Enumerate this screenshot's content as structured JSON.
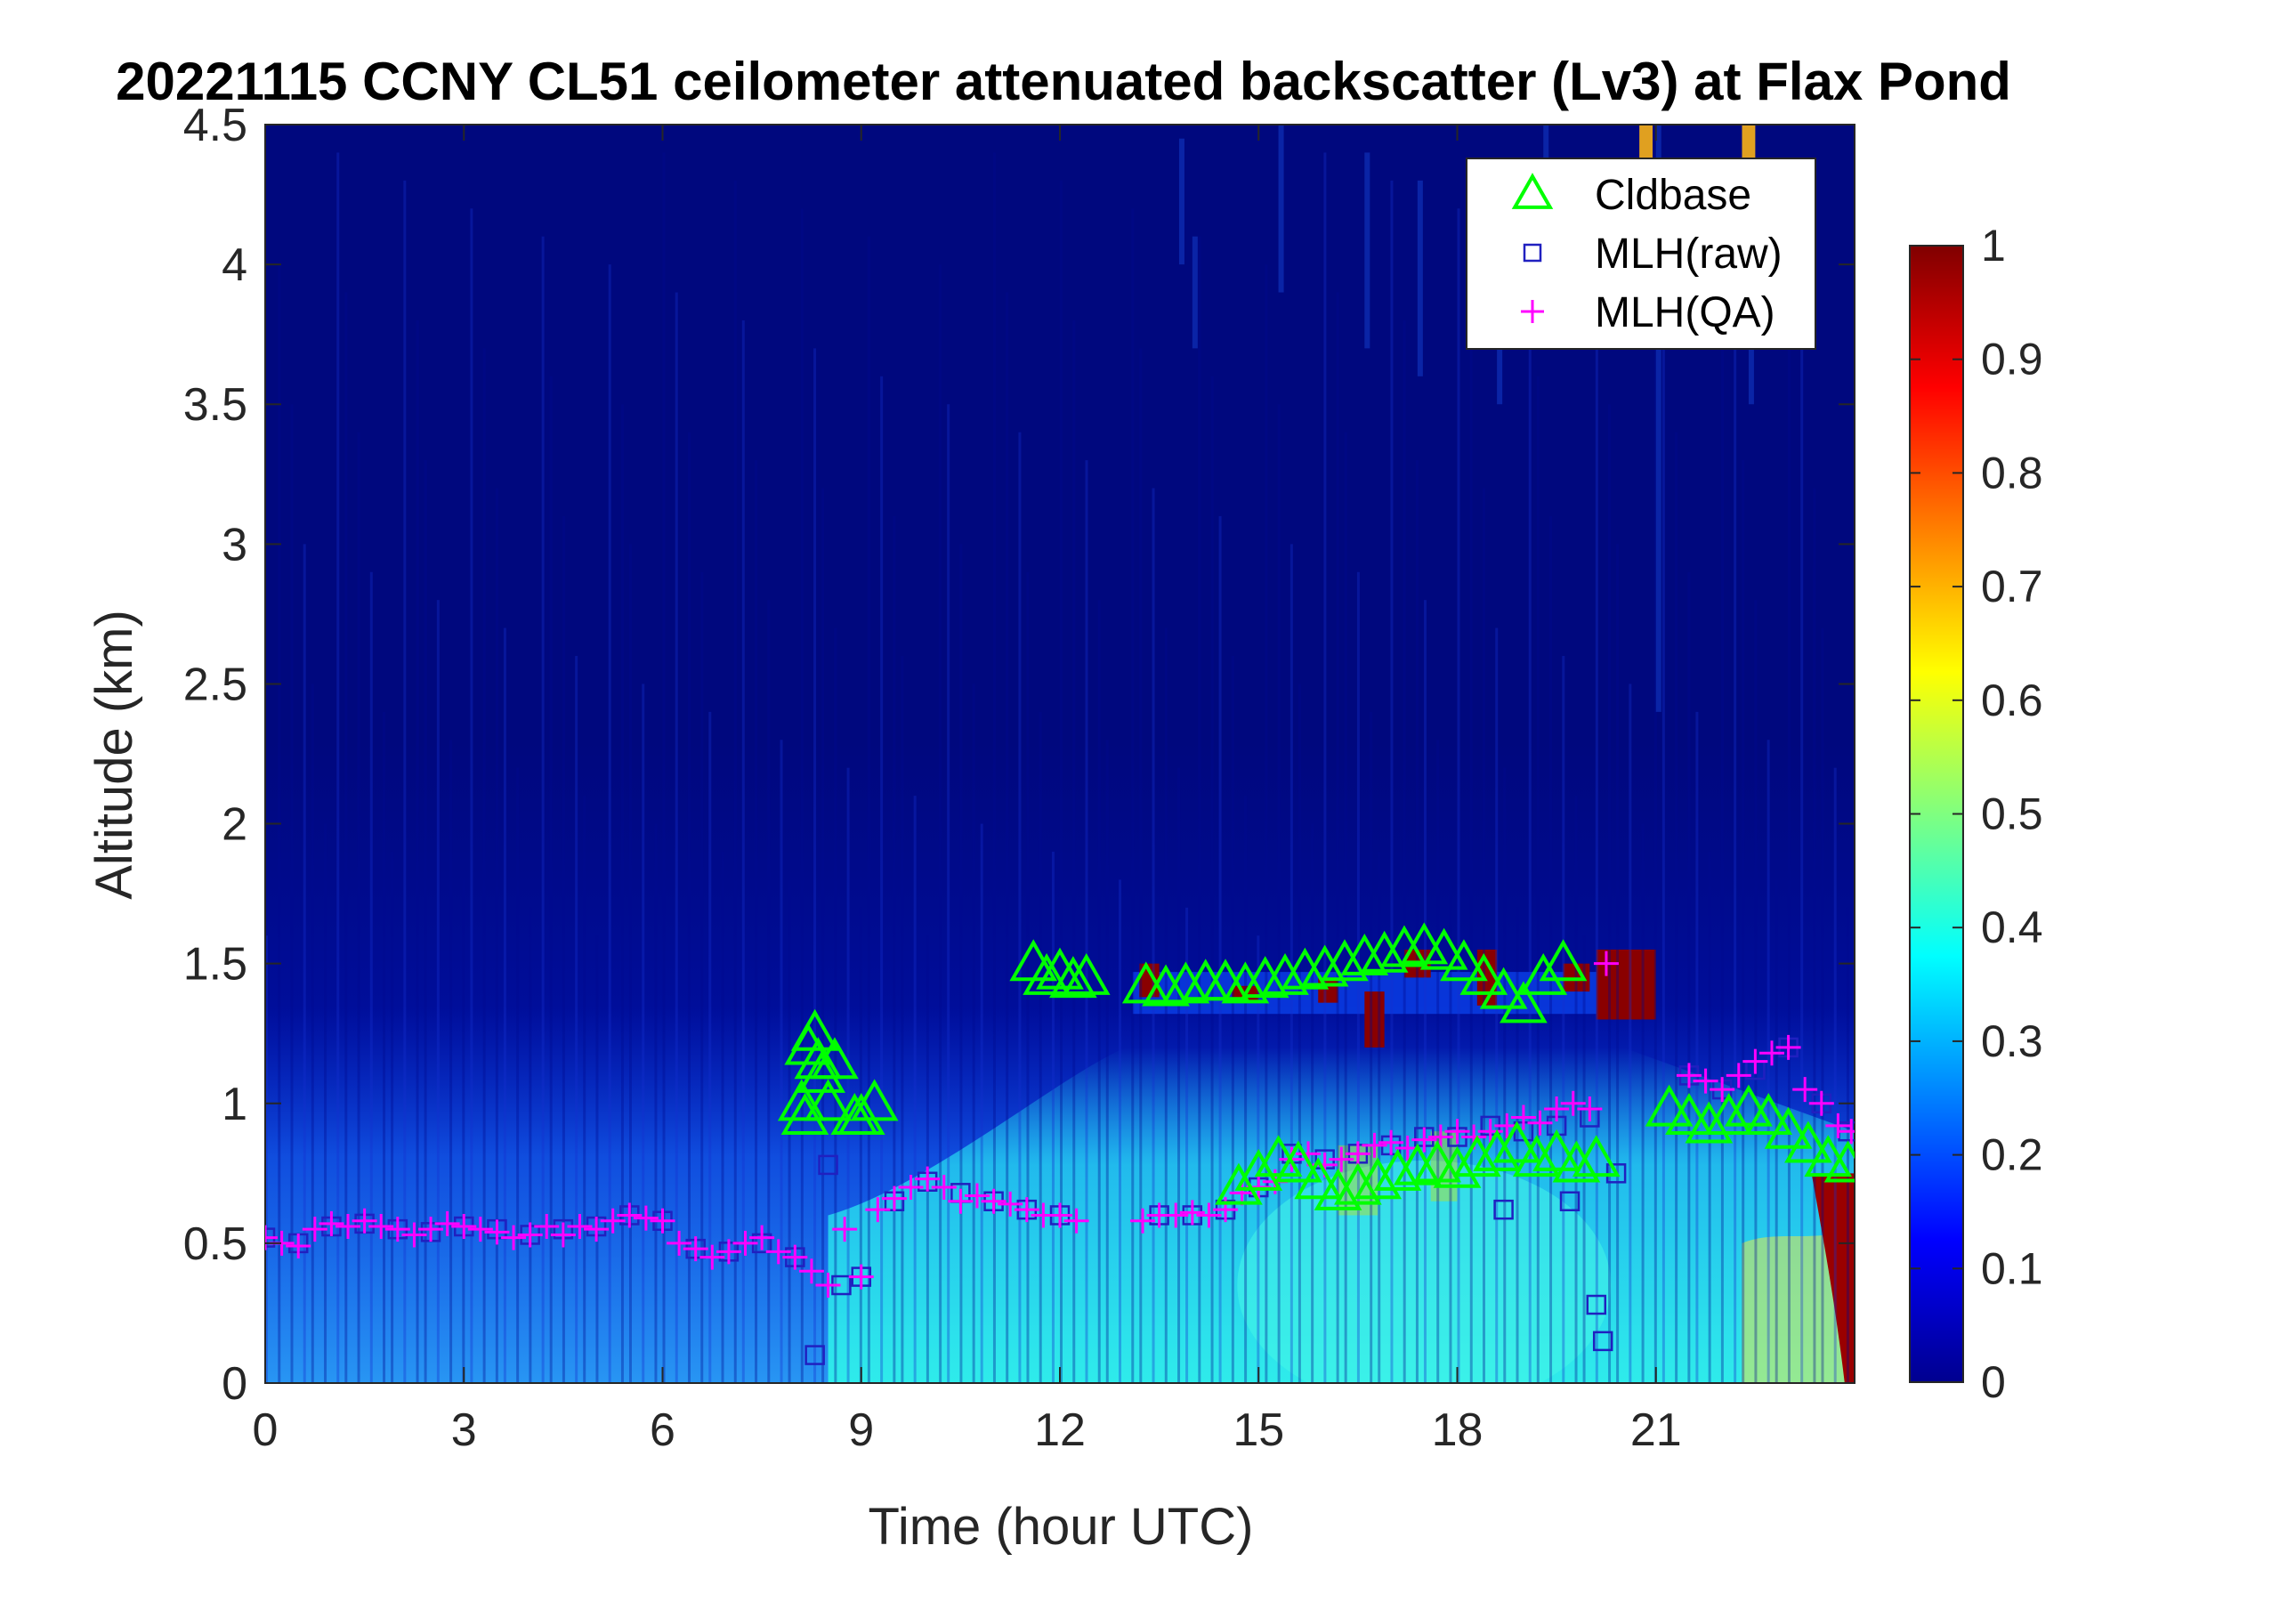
{
  "chart_data": {
    "type": "heatmap",
    "title": "20221115 CCNY CL51 ceilometer attenuated backscatter (Lv3) at Flax Pond",
    "xlabel": "Time (hour UTC)",
    "ylabel": "Altitude (km)",
    "xlim": [
      0,
      24
    ],
    "ylim": [
      0,
      4.5
    ],
    "xticks": [
      0,
      3,
      6,
      9,
      12,
      15,
      18,
      21
    ],
    "yticks": [
      0,
      0.5,
      1,
      1.5,
      2,
      2.5,
      3,
      3.5,
      4,
      4.5
    ],
    "xtick_labels": [
      "0",
      "3",
      "6",
      "9",
      "12",
      "15",
      "18",
      "21"
    ],
    "ytick_labels": [
      "0",
      "0.5",
      "1",
      "1.5",
      "2",
      "2.5",
      "3",
      "3.5",
      "4",
      "4.5"
    ],
    "colormap": "jet",
    "clim": [
      0,
      1
    ],
    "colorbar_ticks": [
      0,
      0.1,
      0.2,
      0.3,
      0.4,
      0.5,
      0.6,
      0.7,
      0.8,
      0.9,
      1
    ],
    "colorbar_tick_labels": [
      "0",
      "0.1",
      "0.2",
      "0.3",
      "0.4",
      "0.5",
      "0.6",
      "0.7",
      "0.8",
      "0.9",
      "1"
    ],
    "legend_position": "top-right",
    "series": [
      {
        "name": "Cldbase",
        "marker": "triangle",
        "color": "#00ff00",
        "x": [
          8.1,
          8.15,
          8.2,
          8.3,
          8.35,
          8.4,
          8.5,
          8.6,
          8.9,
          9.0,
          9.2,
          11.6,
          11.8,
          12.0,
          12.2,
          12.4,
          13.3,
          13.6,
          13.9,
          14.2,
          14.5,
          14.8,
          15.1,
          15.4,
          15.7,
          16.0,
          16.3,
          16.6,
          16.9,
          17.2,
          17.5,
          17.8,
          18.1,
          18.4,
          18.7,
          19.0,
          19.3,
          19.6,
          14.7,
          15.0,
          15.3,
          15.6,
          15.9,
          16.2,
          16.5,
          16.8,
          17.1,
          17.4,
          17.7,
          18.0,
          18.3,
          18.6,
          18.9,
          19.2,
          19.5,
          19.8,
          20.1,
          21.2,
          21.5,
          21.8,
          22.1,
          22.4,
          22.7,
          23.0,
          23.3,
          23.6,
          23.9
        ],
        "y": [
          1.0,
          0.95,
          1.2,
          1.25,
          1.15,
          1.1,
          1.0,
          1.15,
          0.95,
          0.95,
          1.0,
          1.5,
          1.45,
          1.47,
          1.44,
          1.45,
          1.42,
          1.41,
          1.42,
          1.43,
          1.43,
          1.42,
          1.44,
          1.45,
          1.47,
          1.48,
          1.5,
          1.52,
          1.53,
          1.55,
          1.56,
          1.54,
          1.5,
          1.45,
          1.4,
          1.35,
          1.45,
          1.5,
          0.7,
          0.75,
          0.8,
          0.78,
          0.72,
          0.68,
          0.7,
          0.72,
          0.75,
          0.77,
          0.78,
          0.76,
          0.8,
          0.82,
          0.85,
          0.8,
          0.82,
          0.78,
          0.8,
          0.98,
          0.95,
          0.92,
          0.95,
          0.98,
          0.95,
          0.9,
          0.85,
          0.8,
          0.78
        ]
      },
      {
        "name": "MLH(raw)",
        "marker": "square",
        "color": "#2020c0",
        "x": [
          0.0,
          0.5,
          1.0,
          1.5,
          2.0,
          2.5,
          3.0,
          3.5,
          4.0,
          4.5,
          5.0,
          5.5,
          6.0,
          6.5,
          7.0,
          7.5,
          8.0,
          8.3,
          8.5,
          8.7,
          9.0,
          9.5,
          10.0,
          10.5,
          11.0,
          11.5,
          12.0,
          13.5,
          14.0,
          14.5,
          15.0,
          15.5,
          16.0,
          16.5,
          17.0,
          17.5,
          18.0,
          18.5,
          18.7,
          19.0,
          19.5,
          19.7,
          20.0,
          20.1,
          20.2,
          20.4,
          21.5,
          22.0,
          22.5,
          23.0,
          23.5,
          23.9
        ],
        "y": [
          0.52,
          0.5,
          0.56,
          0.57,
          0.55,
          0.54,
          0.56,
          0.55,
          0.53,
          0.55,
          0.56,
          0.6,
          0.58,
          0.48,
          0.47,
          0.5,
          0.45,
          0.1,
          0.78,
          0.35,
          0.38,
          0.65,
          0.72,
          0.68,
          0.65,
          0.62,
          0.6,
          0.6,
          0.6,
          0.62,
          0.7,
          0.82,
          0.8,
          0.82,
          0.85,
          0.88,
          0.88,
          0.92,
          0.62,
          0.9,
          0.92,
          0.65,
          0.95,
          0.28,
          0.15,
          0.75,
          1.1,
          1.05,
          1.12,
          1.2,
          1.0,
          0.9
        ]
      },
      {
        "name": "MLH(QA)",
        "marker": "plus",
        "color": "#ff00ff",
        "x": [
          0.0,
          0.25,
          0.5,
          0.75,
          1.0,
          1.25,
          1.5,
          1.75,
          2.0,
          2.25,
          2.5,
          2.75,
          3.0,
          3.25,
          3.5,
          3.75,
          4.0,
          4.25,
          4.5,
          4.75,
          5.0,
          5.25,
          5.5,
          5.75,
          6.0,
          6.25,
          6.5,
          6.75,
          7.0,
          7.25,
          7.5,
          7.75,
          8.0,
          8.25,
          8.5,
          8.75,
          9.0,
          9.25,
          9.5,
          9.75,
          10.0,
          10.25,
          10.5,
          10.75,
          11.0,
          11.25,
          11.5,
          11.75,
          12.0,
          12.25,
          13.25,
          13.5,
          13.75,
          14.0,
          14.25,
          14.5,
          14.75,
          15.0,
          15.25,
          15.5,
          15.75,
          16.0,
          16.25,
          16.5,
          16.75,
          17.0,
          17.25,
          17.5,
          17.75,
          18.0,
          18.25,
          18.5,
          18.75,
          19.0,
          19.25,
          19.5,
          19.75,
          20.0,
          20.25,
          21.5,
          21.75,
          22.0,
          22.25,
          22.5,
          22.75,
          23.0,
          23.25,
          23.5,
          23.75,
          23.95
        ],
        "y": [
          0.52,
          0.5,
          0.49,
          0.55,
          0.57,
          0.56,
          0.58,
          0.56,
          0.55,
          0.53,
          0.55,
          0.57,
          0.56,
          0.55,
          0.54,
          0.52,
          0.53,
          0.56,
          0.53,
          0.56,
          0.55,
          0.58,
          0.6,
          0.59,
          0.58,
          0.5,
          0.48,
          0.45,
          0.47,
          0.5,
          0.52,
          0.47,
          0.45,
          0.4,
          0.35,
          0.55,
          0.38,
          0.62,
          0.66,
          0.7,
          0.73,
          0.7,
          0.65,
          0.67,
          0.65,
          0.64,
          0.62,
          0.6,
          0.6,
          0.58,
          0.58,
          0.6,
          0.6,
          0.61,
          0.6,
          0.62,
          0.68,
          0.7,
          0.72,
          0.8,
          0.82,
          0.78,
          0.8,
          0.82,
          0.85,
          0.86,
          0.84,
          0.87,
          0.88,
          0.9,
          0.88,
          0.9,
          0.92,
          0.95,
          0.93,
          0.98,
          1.0,
          0.98,
          1.5,
          1.1,
          1.08,
          1.05,
          1.1,
          1.15,
          1.18,
          1.2,
          1.05,
          1.0,
          0.92,
          0.9
        ]
      }
    ]
  }
}
